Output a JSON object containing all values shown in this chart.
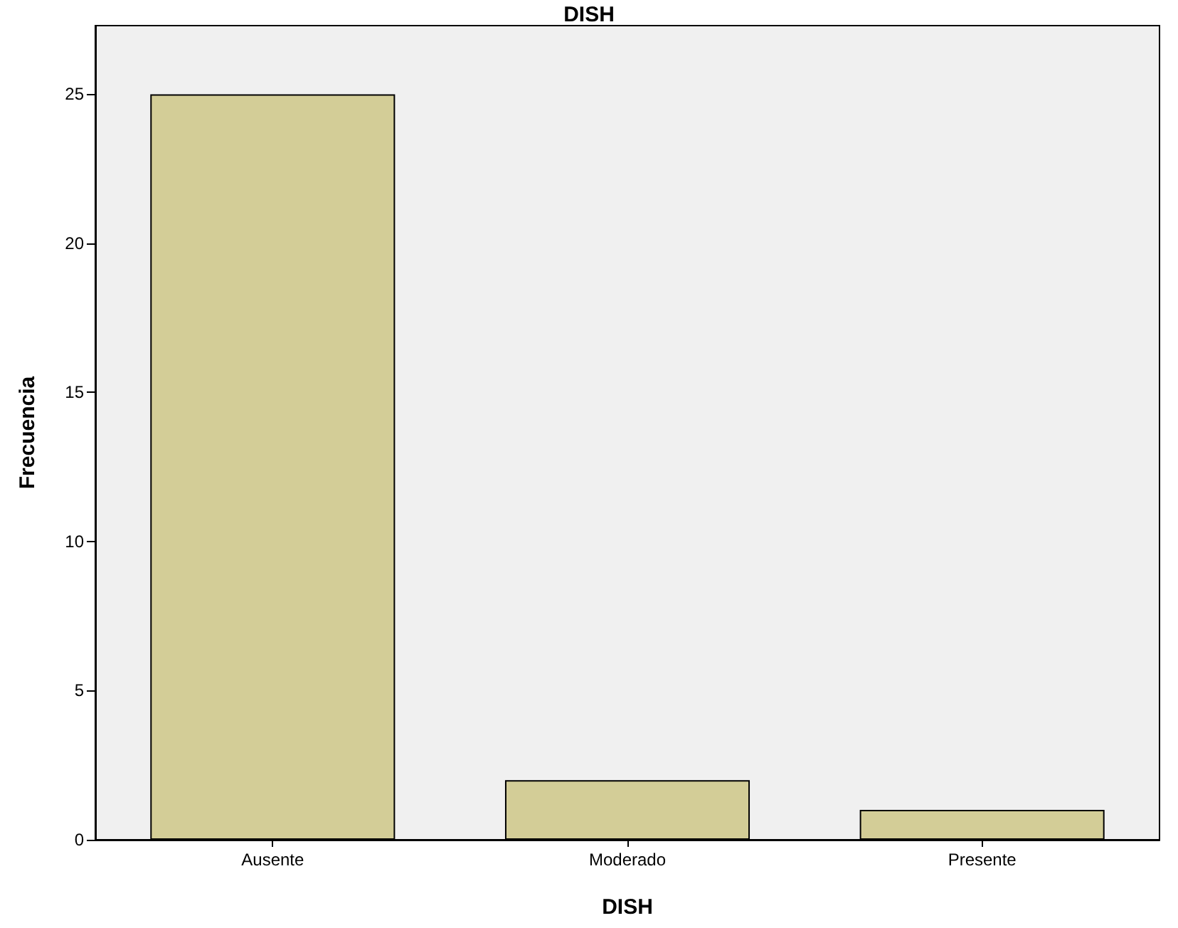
{
  "chart_data": {
    "type": "bar",
    "title": "DISH",
    "xlabel": "DISH",
    "ylabel": "Frecuencia",
    "categories": [
      "Ausente",
      "Moderado",
      "Presente"
    ],
    "series": [
      {
        "color": "#d3cd97",
        "values": [
          25,
          2,
          1
        ]
      }
    ],
    "ylim": [
      0,
      27.3
    ],
    "yticks": [
      0,
      5,
      10,
      15,
      20,
      25
    ],
    "grid": false
  }
}
